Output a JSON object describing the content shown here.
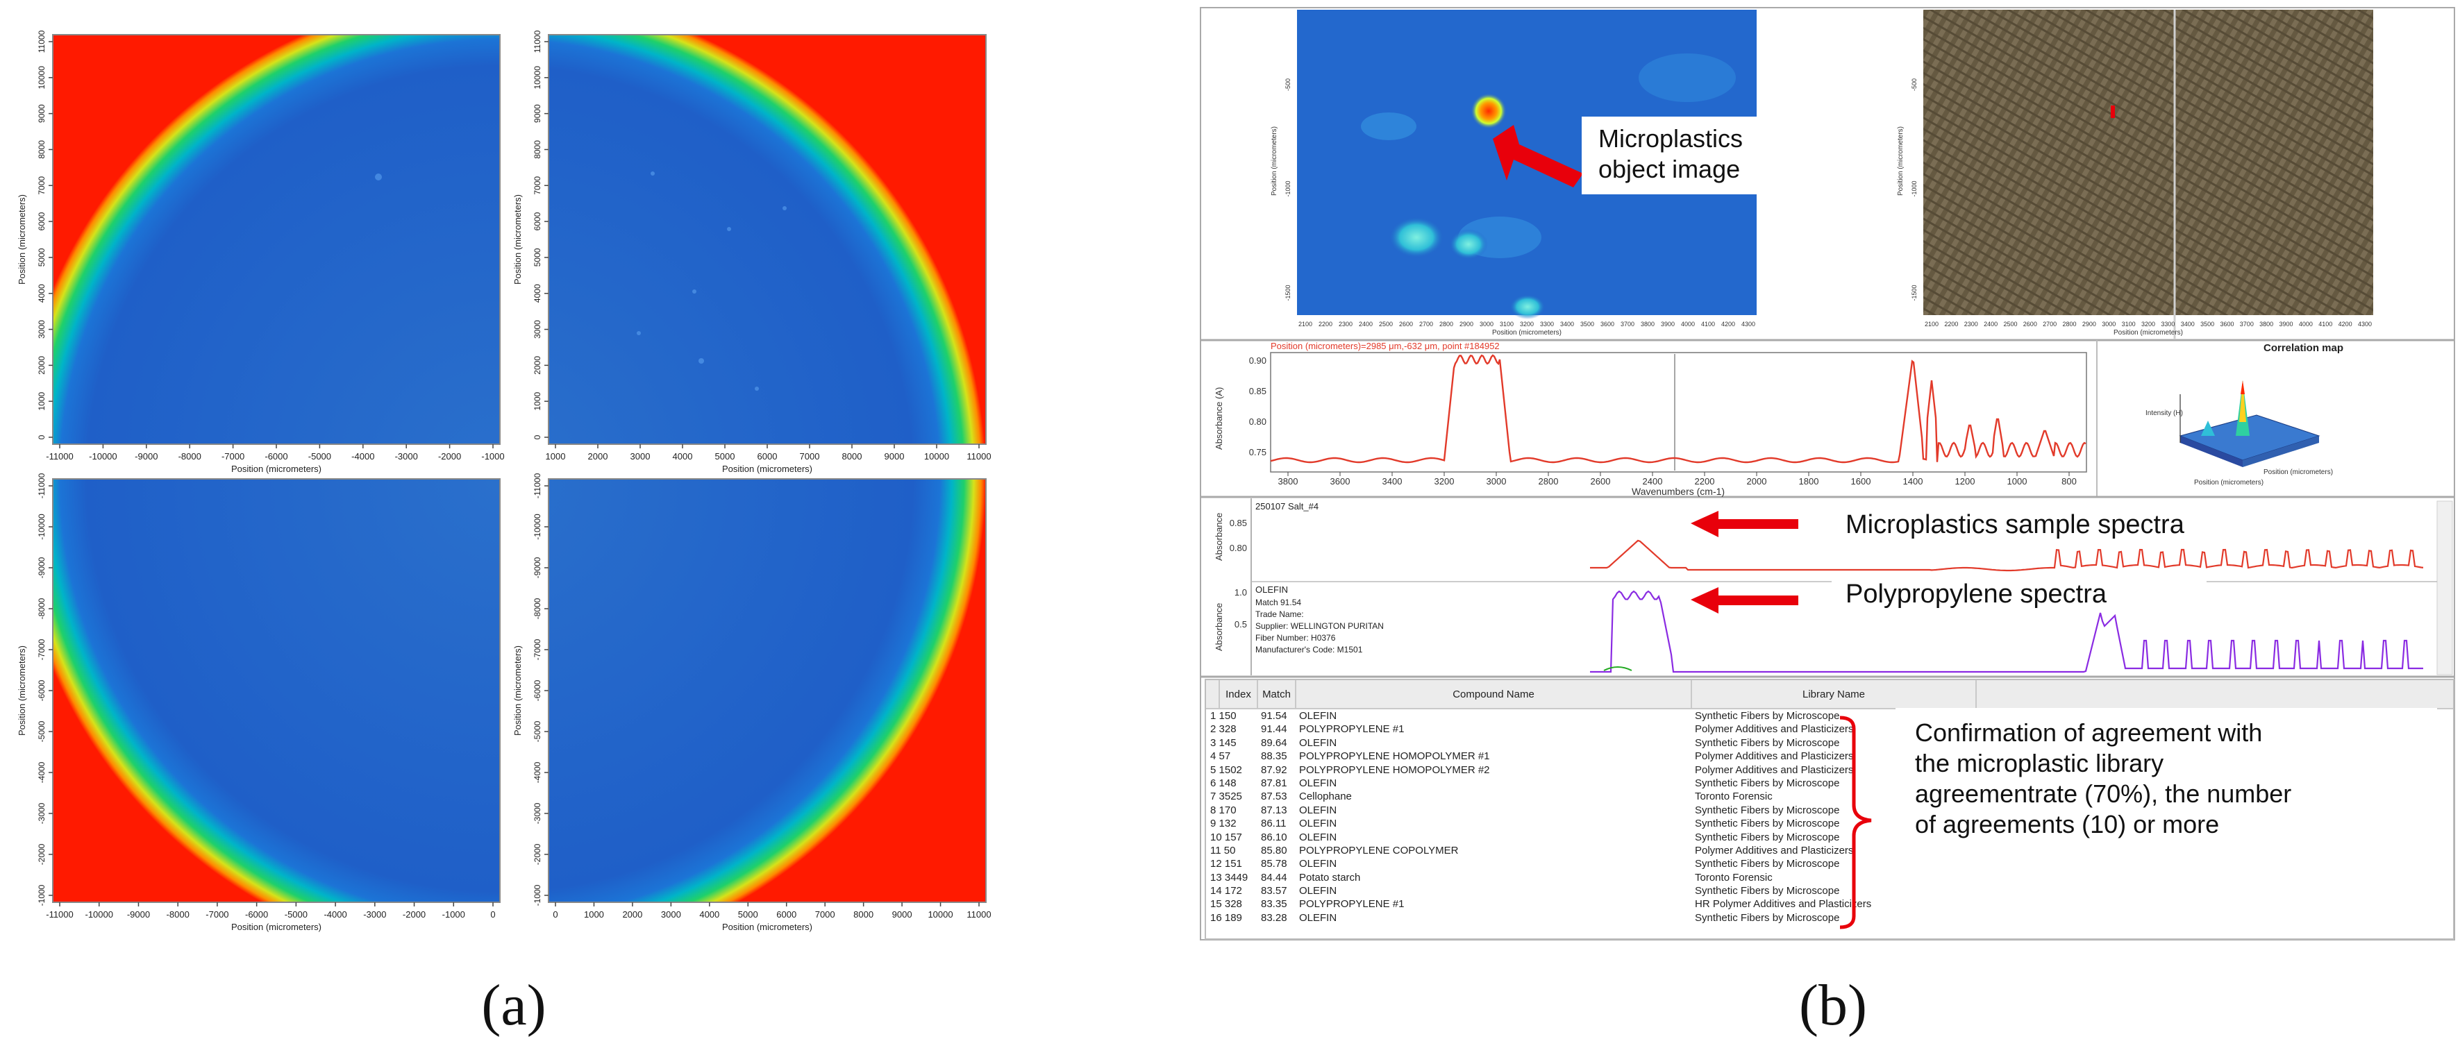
{
  "panel_a": {
    "quadrants": [
      {
        "id": "tl",
        "x_ticks": [
          "-11000",
          "-10000",
          "-9000",
          "-8000",
          "-7000",
          "-6000",
          "-5000",
          "-4000",
          "-3000",
          "-2000",
          "-1000"
        ],
        "y_ticks": [
          "0",
          "1000",
          "2000",
          "3000",
          "4000",
          "5000",
          "6000",
          "7000",
          "8000",
          "9000",
          "10000",
          "11000"
        ],
        "xlabel": "Position (micrometers)",
        "ylabel": "Position (micrometers)"
      },
      {
        "id": "tr",
        "x_ticks": [
          "1000",
          "2000",
          "3000",
          "4000",
          "5000",
          "6000",
          "7000",
          "8000",
          "9000",
          "10000",
          "11000"
        ],
        "y_ticks": [
          "0",
          "1000",
          "2000",
          "3000",
          "4000",
          "5000",
          "6000",
          "7000",
          "8000",
          "9000",
          "10000",
          "11000"
        ],
        "xlabel": "Position (micrometers)",
        "ylabel": "Position (micrometers)"
      },
      {
        "id": "bl",
        "x_ticks": [
          "-11000",
          "-10000",
          "-9000",
          "-8000",
          "-7000",
          "-6000",
          "-5000",
          "-4000",
          "-3000",
          "-2000",
          "-1000",
          "0"
        ],
        "y_ticks": [
          "-1000",
          "-2000",
          "-3000",
          "-4000",
          "-5000",
          "-6000",
          "-7000",
          "-8000",
          "-9000",
          "-10000",
          "-11000"
        ],
        "xlabel": "Position (micrometers)",
        "ylabel": "Position (micrometers)"
      },
      {
        "id": "br",
        "x_ticks": [
          "0",
          "1000",
          "2000",
          "3000",
          "4000",
          "5000",
          "6000",
          "7000",
          "8000",
          "9000",
          "10000",
          "11000"
        ],
        "y_ticks": [
          "-1000",
          "-2000",
          "-3000",
          "-4000",
          "-5000",
          "-6000",
          "-7000",
          "-8000",
          "-9000",
          "-10000",
          "-11000"
        ],
        "xlabel": "Position (micrometers)",
        "ylabel": "Position (micrometers)"
      }
    ],
    "caption": "(a)"
  },
  "panel_b": {
    "image_left": {
      "x_ticks": [
        "2100",
        "2200",
        "2300",
        "2400",
        "2500",
        "2600",
        "2700",
        "2800",
        "2900",
        "3000",
        "3100",
        "3200",
        "3300",
        "3400",
        "3500",
        "3600",
        "3700",
        "3800",
        "3900",
        "4000",
        "4100",
        "4200",
        "4300"
      ],
      "y_ticks": [
        "-500",
        "-1000",
        "-1500"
      ],
      "xlabel": "Position (micrometers)",
      "ylabel": "Position (micrometers)"
    },
    "image_right": {
      "x_ticks": [
        "2100",
        "2200",
        "2300",
        "2400",
        "2500",
        "2600",
        "2700",
        "2800",
        "2900",
        "3000",
        "3100",
        "3200",
        "3300",
        "3400",
        "3500",
        "3600",
        "3700",
        "3800",
        "3900",
        "4000",
        "4100",
        "4200",
        "4300"
      ],
      "y_ticks": [
        "-500",
        "-1000",
        "-1500"
      ],
      "xlabel": "Position (micrometers)",
      "ylabel": "Position (micrometers)"
    },
    "callout_object": "Microplastics object image",
    "spectrum": {
      "position_label": "Position (micrometers)=2985 μm,-632 μm, point #184952",
      "ylabel": "Absorbance (A)",
      "xlabel": "Wavenumbers (cm-1)",
      "y_ticks": [
        "0.90",
        "0.85",
        "0.80",
        "0.75"
      ],
      "x_ticks": [
        "3800",
        "3600",
        "3400",
        "3200",
        "3000",
        "2800",
        "2600",
        "2400",
        "2200",
        "2000",
        "1800",
        "1600",
        "1400",
        "1200",
        "1000",
        "800"
      ]
    },
    "correlation_map": {
      "title": "Correlation map",
      "zlabel": "Intensity (H)",
      "xlabel": "Position (micrometers)",
      "ylabel": "Position (micrometers)"
    },
    "sample": {
      "name": "250107 Salt_#4",
      "ylabel": "Absorbance",
      "y_ticks": [
        "0.85",
        "0.80"
      ],
      "callout": "Microplastics sample spectra"
    },
    "reference": {
      "name": "OLEFIN",
      "ylabel": "Absorbance",
      "y_ticks": [
        "1.0",
        "0.5"
      ],
      "details": [
        "Match 91.54",
        "Trade Name:",
        "Supplier:  WELLINGTON PURITAN",
        "Fiber Number:  H0376",
        "Manufacturer's Code:  M1501"
      ],
      "callout": "Polypropylene spectra"
    },
    "table": {
      "columns": [
        "Index",
        "Match",
        "Compound Name",
        "Library Name"
      ],
      "rows": [
        [
          "1  150",
          "91.54",
          "OLEFIN",
          "Synthetic Fibers by Microscope"
        ],
        [
          "2  328",
          "91.44",
          "POLYPROPYLENE #1",
          "Polymer Additives and Plasticizers"
        ],
        [
          "3  145",
          "89.64",
          "OLEFIN",
          "Synthetic Fibers by Microscope"
        ],
        [
          "4  57",
          "88.35",
          "POLYPROPYLENE HOMOPOLYMER #1",
          "Polymer Additives and Plasticizers"
        ],
        [
          "5  1502",
          "87.92",
          "POLYPROPYLENE HOMOPOLYMER #2",
          "Polymer Additives and Plasticizers"
        ],
        [
          "6  148",
          "87.81",
          "OLEFIN",
          "Synthetic Fibers by Microscope"
        ],
        [
          "7  3525",
          "87.53",
          "Cellophane",
          "Toronto Forensic"
        ],
        [
          "8  170",
          "87.13",
          "OLEFIN",
          "Synthetic Fibers by Microscope"
        ],
        [
          "9  132",
          "86.11",
          "OLEFIN",
          "Synthetic Fibers by Microscope"
        ],
        [
          "10  157",
          "86.10",
          "OLEFIN",
          "Synthetic Fibers by Microscope"
        ],
        [
          "11  50",
          "85.80",
          "POLYPROPYLENE COPOLYMER",
          "Polymer Additives and Plasticizers"
        ],
        [
          "12  151",
          "85.78",
          "OLEFIN",
          "Synthetic Fibers by Microscope"
        ],
        [
          "13  3449",
          "84.44",
          "Potato starch",
          "Toronto Forensic"
        ],
        [
          "14  172",
          "83.57",
          "OLEFIN",
          "Synthetic Fibers by Microscope"
        ],
        [
          "15  328",
          "83.35",
          "POLYPROPYLENE #1",
          "HR Polymer Additives and Plasticizers"
        ],
        [
          "16  189",
          "83.28",
          "OLEFIN",
          "Synthetic Fibers by Microscope"
        ]
      ]
    },
    "callout_agreement": [
      "Confirmation of agreement with",
      "the microplastic library",
      "agreementrate (70%), the number",
      "of agreements (10) or more"
    ],
    "caption": "(b)"
  },
  "colors": {
    "heat_red": "#ff1a00",
    "heat_blue": "#1f5fc8",
    "spectrum_red": "#e23a2a",
    "reference_purple": "#8a2be2",
    "arrow_red": "#e8000b",
    "bracket_red": "#e8000b"
  }
}
